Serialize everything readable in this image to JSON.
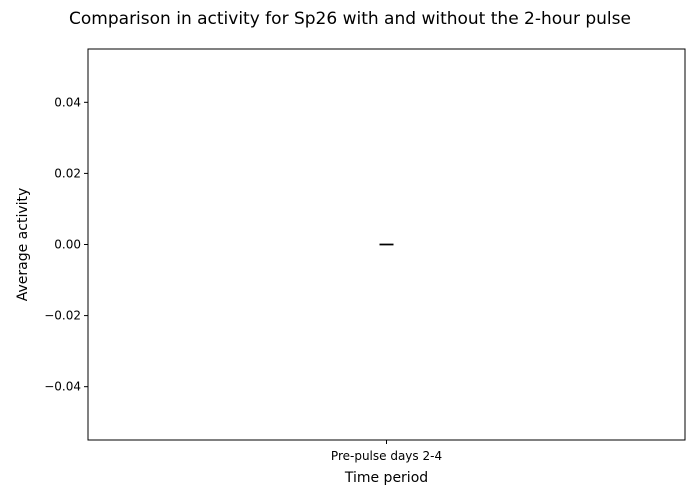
{
  "chart_data": {
    "type": "bar",
    "title": "Comparison in activity for Sp26 with and without the 2-hour pulse",
    "xlabel": "Time period",
    "ylabel": "Average activity",
    "categories": [
      "Pre-pulse days 2-4"
    ],
    "values": [
      0.0
    ],
    "error": [
      0.0
    ],
    "ylim": [
      -0.055,
      0.055
    ],
    "yticks": [
      -0.04,
      -0.02,
      0.0,
      0.02,
      0.04
    ],
    "ytick_labels": [
      "−0.04",
      "−0.02",
      "0.00",
      "0.02",
      "0.04"
    ],
    "grid": false,
    "colors": {
      "frame": "#000000",
      "bar": "#1f77b4",
      "error": "#000000"
    }
  }
}
